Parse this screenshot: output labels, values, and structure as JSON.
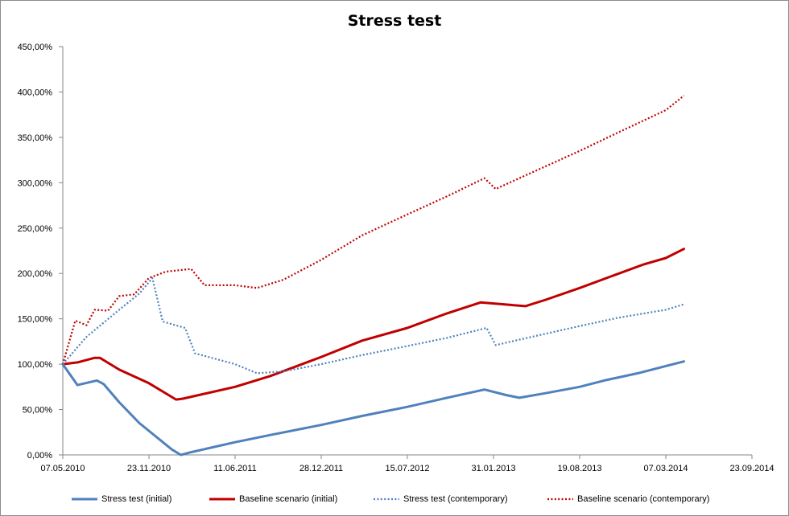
{
  "chart_data": {
    "type": "line",
    "title": "Stress test",
    "xlabel": "",
    "ylabel": "",
    "ylim": [
      0,
      450
    ],
    "y_ticks": [
      "0,00%",
      "50,00%",
      "100,00%",
      "150,00%",
      "200,00%",
      "250,00%",
      "300,00%",
      "350,00%",
      "400,00%",
      "450,00%"
    ],
    "x_ticks": [
      "07.05.2010",
      "23.11.2010",
      "11.06.2011",
      "28.12.2011",
      "15.07.2012",
      "31.01.2013",
      "19.08.2013",
      "07.03.2014",
      "23.09.2014"
    ],
    "x_range": [
      "2010-05-07",
      "2014-09-23"
    ],
    "grid": false,
    "legend_position": "bottom",
    "series": [
      {
        "name": "Stress test (initial)",
        "color": "#4f81bd",
        "style": "solid",
        "points": [
          [
            "2010-05-07",
            100
          ],
          [
            "2010-06-10",
            77
          ],
          [
            "2010-07-25",
            82
          ],
          [
            "2010-08-10",
            78
          ],
          [
            "2010-09-15",
            58
          ],
          [
            "2010-11-01",
            35
          ],
          [
            "2011-01-15",
            6
          ],
          [
            "2011-02-05",
            0
          ],
          [
            "2011-03-01",
            3
          ],
          [
            "2011-06-11",
            14
          ],
          [
            "2011-09-01",
            22
          ],
          [
            "2011-12-28",
            33
          ],
          [
            "2012-04-01",
            43
          ],
          [
            "2012-07-15",
            53
          ],
          [
            "2012-10-15",
            63
          ],
          [
            "2013-01-10",
            72
          ],
          [
            "2013-03-01",
            66
          ],
          [
            "2013-04-01",
            63
          ],
          [
            "2013-06-01",
            68
          ],
          [
            "2013-08-19",
            75
          ],
          [
            "2013-10-15",
            82
          ],
          [
            "2014-01-01",
            90
          ],
          [
            "2014-03-07",
            98
          ],
          [
            "2014-04-18",
            103
          ]
        ]
      },
      {
        "name": "Baseline scenario (initial)",
        "color": "#c00000",
        "style": "solid",
        "points": [
          [
            "2010-05-07",
            100
          ],
          [
            "2010-06-10",
            102
          ],
          [
            "2010-07-20",
            107
          ],
          [
            "2010-08-01",
            107
          ],
          [
            "2010-09-15",
            94
          ],
          [
            "2010-11-23",
            79
          ],
          [
            "2011-01-25",
            61
          ],
          [
            "2011-02-10",
            62
          ],
          [
            "2011-06-11",
            75
          ],
          [
            "2011-09-01",
            87
          ],
          [
            "2011-12-28",
            108
          ],
          [
            "2012-04-01",
            126
          ],
          [
            "2012-07-15",
            140
          ],
          [
            "2012-10-15",
            156
          ],
          [
            "2013-01-01",
            168
          ],
          [
            "2013-04-15",
            164
          ],
          [
            "2013-06-01",
            171
          ],
          [
            "2013-08-19",
            184
          ],
          [
            "2013-11-01",
            197
          ],
          [
            "2014-01-15",
            210
          ],
          [
            "2014-03-07",
            217
          ],
          [
            "2014-04-18",
            227
          ]
        ]
      },
      {
        "name": "Stress test (contemporary)",
        "color": "#4f81bd",
        "style": "dotted",
        "points": [
          [
            "2010-05-07",
            100
          ],
          [
            "2010-07-01",
            130
          ],
          [
            "2010-09-15",
            160
          ],
          [
            "2010-11-01",
            178
          ],
          [
            "2010-12-01",
            195
          ],
          [
            "2010-12-25",
            147
          ],
          [
            "2011-02-15",
            140
          ],
          [
            "2011-03-10",
            112
          ],
          [
            "2011-06-11",
            100
          ],
          [
            "2011-08-01",
            90
          ],
          [
            "2011-10-01",
            92
          ],
          [
            "2011-12-28",
            100
          ],
          [
            "2012-04-01",
            110
          ],
          [
            "2012-07-15",
            120
          ],
          [
            "2012-10-15",
            129
          ],
          [
            "2013-01-15",
            140
          ],
          [
            "2013-02-05",
            121
          ],
          [
            "2013-04-01",
            127
          ],
          [
            "2013-08-19",
            142
          ],
          [
            "2013-11-15",
            151
          ],
          [
            "2014-03-07",
            160
          ],
          [
            "2014-04-18",
            166
          ]
        ]
      },
      {
        "name": "Baseline scenario (contemporary)",
        "color": "#c00000",
        "style": "dotted",
        "points": [
          [
            "2010-05-07",
            100
          ],
          [
            "2010-06-05",
            148
          ],
          [
            "2010-07-01",
            143
          ],
          [
            "2010-07-20",
            160
          ],
          [
            "2010-08-20",
            159
          ],
          [
            "2010-09-15",
            175
          ],
          [
            "2010-10-20",
            177
          ],
          [
            "2010-11-23",
            195
          ],
          [
            "2011-01-01",
            202
          ],
          [
            "2011-03-01",
            205
          ],
          [
            "2011-04-01",
            187
          ],
          [
            "2011-06-11",
            187
          ],
          [
            "2011-08-01",
            184
          ],
          [
            "2011-10-01",
            193
          ],
          [
            "2011-12-28",
            215
          ],
          [
            "2012-04-01",
            242
          ],
          [
            "2012-07-15",
            265
          ],
          [
            "2012-10-15",
            285
          ],
          [
            "2013-01-10",
            305
          ],
          [
            "2013-02-05",
            293
          ],
          [
            "2013-04-01",
            305
          ],
          [
            "2013-08-19",
            335
          ],
          [
            "2013-11-15",
            355
          ],
          [
            "2014-03-07",
            380
          ],
          [
            "2014-04-18",
            396
          ]
        ]
      }
    ]
  }
}
